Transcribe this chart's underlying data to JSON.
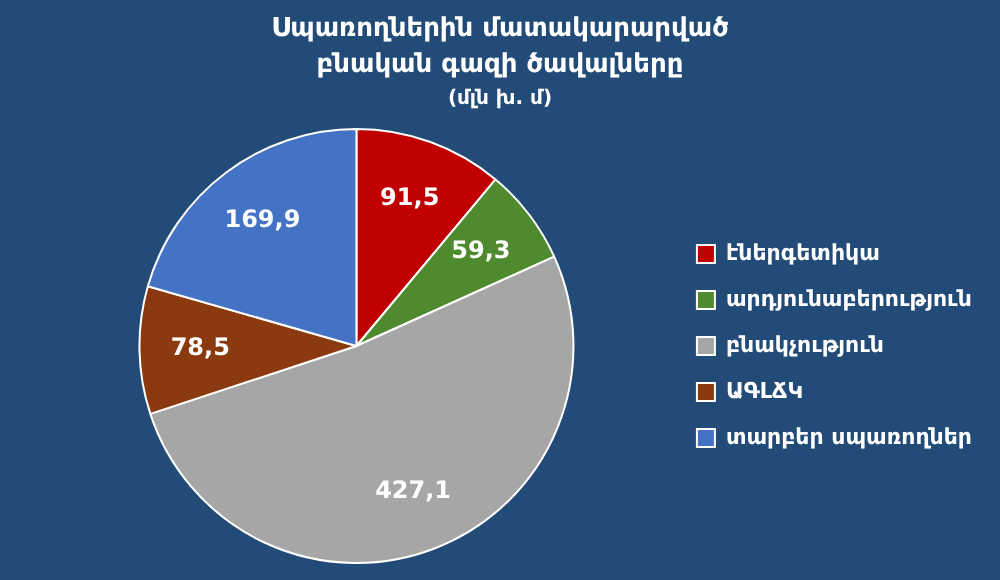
{
  "chart_data": {
    "type": "pie",
    "title": "Սպառողներին մատակարարված բնական գազի ծավալները",
    "subtitle": "(մլն խ. մ)",
    "categories": [
      "էներգետիկա",
      "արդյունաբերություն",
      "բնակչություն",
      "ԱԳԼՃԿ",
      "տարբեր սպառողներ"
    ],
    "values": [
      91.5,
      59.3,
      427.1,
      78.5,
      169.9
    ],
    "value_labels": [
      "91,5",
      "59,3",
      "427,1",
      "78,5",
      "169,9"
    ],
    "colors": [
      "#c00000",
      "#4f8a2e",
      "#a6a6a6",
      "#8b3a0f",
      "#4472c4"
    ],
    "legend": "right"
  }
}
